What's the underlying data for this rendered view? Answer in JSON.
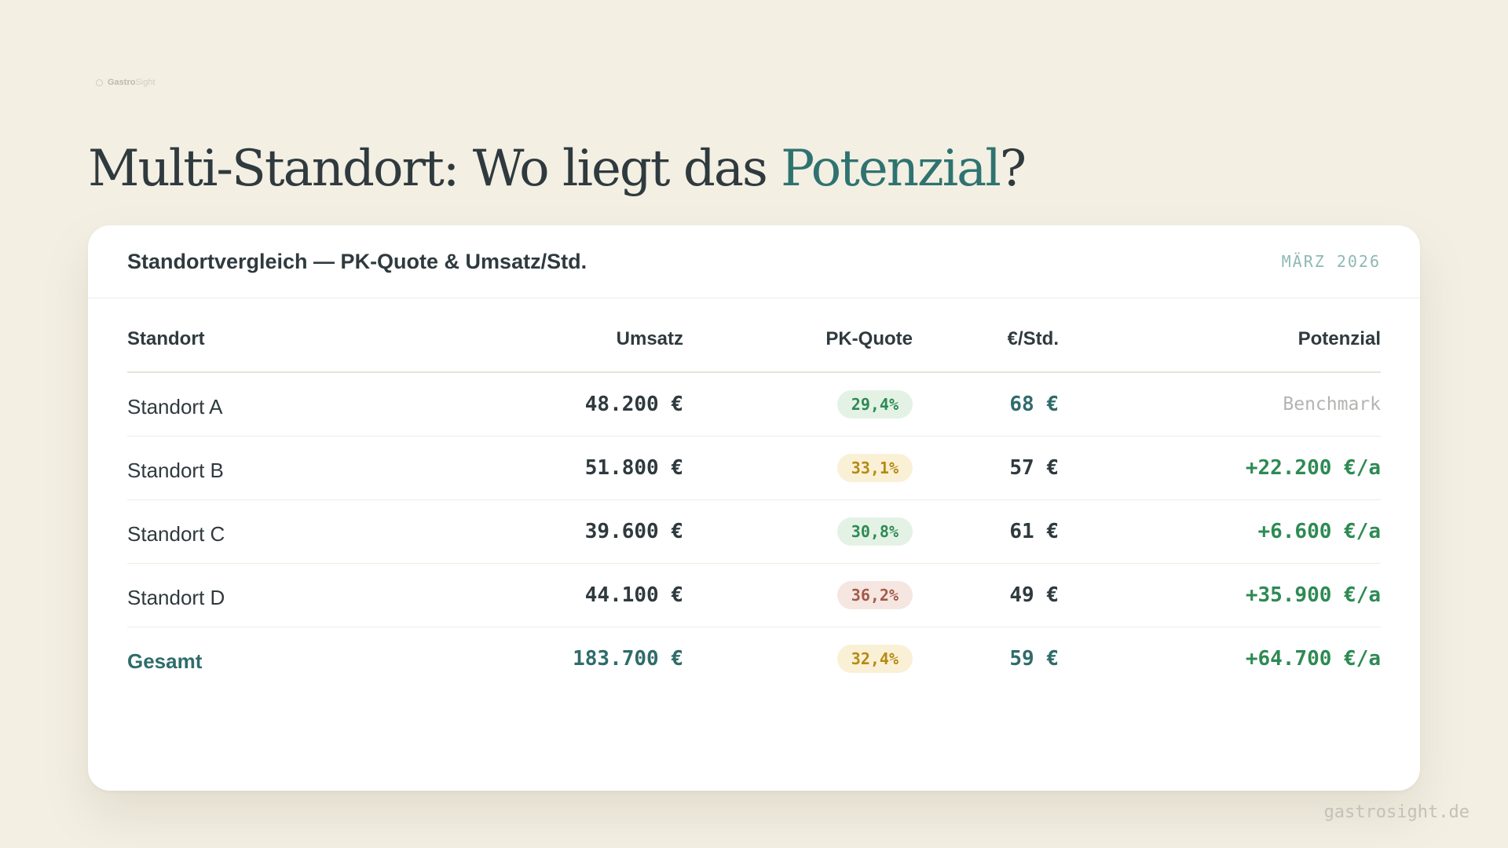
{
  "logo": {
    "bold": "Gastro",
    "light": "Sight"
  },
  "title": {
    "prefix": "Multi-Standort: Wo liegt das ",
    "accent": "Potenzial",
    "suffix": "?"
  },
  "card": {
    "title": "Standortvergleich — PK-Quote & Umsatz/Std.",
    "date": "MÄRZ 2026"
  },
  "table": {
    "headers": [
      "Standort",
      "Umsatz",
      "PK-Quote",
      "€/Std.",
      "Potenzial"
    ],
    "rows": [
      {
        "name": "Standort A",
        "umsatz": "48.200 €",
        "pk": "29,4%",
        "pk_status": "good",
        "std": "68 €",
        "potenzial": "Benchmark"
      },
      {
        "name": "Standort B",
        "umsatz": "51.800 €",
        "pk": "33,1%",
        "pk_status": "warn",
        "std": "57 €",
        "potenzial": "+22.200 €/a"
      },
      {
        "name": "Standort C",
        "umsatz": "39.600 €",
        "pk": "30,8%",
        "pk_status": "good",
        "std": "61 €",
        "potenzial": "+6.600 €/a"
      },
      {
        "name": "Standort D",
        "umsatz": "44.100 €",
        "pk": "36,2%",
        "pk_status": "bad",
        "std": "49 €",
        "potenzial": "+35.900 €/a"
      },
      {
        "name": "Gesamt",
        "umsatz": "183.700 €",
        "pk": "32,4%",
        "pk_status": "warn",
        "std": "59 €",
        "potenzial": "+64.700 €/a"
      }
    ]
  },
  "colors": {
    "accent": "#2f7370",
    "good": "#2e8a53",
    "warn": "#b58a12",
    "bad": "#a35a47",
    "background": "#f3efe3"
  },
  "footer": "gastrosight.de"
}
